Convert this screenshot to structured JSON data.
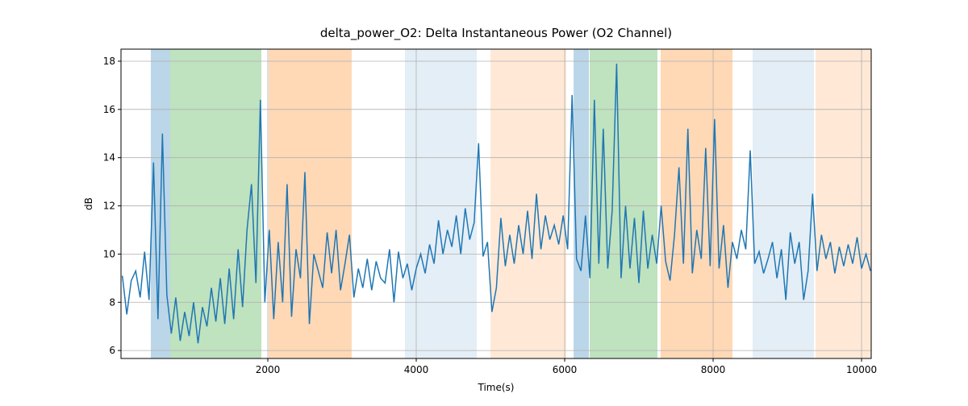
{
  "chart_data": {
    "type": "line",
    "title": "delta_power_O2: Delta Instantaneous Power (O2 Channel)",
    "xlabel": "Time(s)",
    "ylabel": "dB",
    "xlim": [
      22,
      10130
    ],
    "ylim": [
      5.67,
      18.5
    ],
    "xticks": [
      2000,
      4000,
      6000,
      8000,
      10000
    ],
    "yticks": [
      6,
      8,
      10,
      12,
      14,
      16,
      18
    ],
    "grid": true,
    "spans": [
      {
        "x0": 424,
        "x1": 685,
        "color": "#1f77b4",
        "alpha": 0.3
      },
      {
        "x0": 685,
        "x1": 1913,
        "color": "#2ca02c",
        "alpha": 0.3
      },
      {
        "x0": 2011,
        "x1": 3130,
        "color": "#ff7f0e",
        "alpha": 0.3
      },
      {
        "x0": 3848,
        "x1": 4815,
        "color": "#1f77b4",
        "alpha": 0.12
      },
      {
        "x0": 5000,
        "x1": 6022,
        "color": "#ff7f0e",
        "alpha": 0.17
      },
      {
        "x0": 6120,
        "x1": 6326,
        "color": "#1f77b4",
        "alpha": 0.3
      },
      {
        "x0": 6337,
        "x1": 7250,
        "color": "#2ca02c",
        "alpha": 0.3
      },
      {
        "x0": 7293,
        "x1": 8261,
        "color": "#ff7f0e",
        "alpha": 0.3
      },
      {
        "x0": 8533,
        "x1": 9359,
        "color": "#1f77b4",
        "alpha": 0.12
      },
      {
        "x0": 9380,
        "x1": 10130,
        "color": "#ff7f0e",
        "alpha": 0.17
      }
    ],
    "x": [
      40,
      100,
      160,
      220,
      280,
      340,
      400,
      460,
      520,
      580,
      640,
      700,
      760,
      820,
      880,
      940,
      1000,
      1060,
      1120,
      1180,
      1240,
      1300,
      1360,
      1420,
      1480,
      1540,
      1600,
      1660,
      1720,
      1780,
      1840,
      1900,
      1960,
      2020,
      2080,
      2140,
      2200,
      2260,
      2320,
      2380,
      2440,
      2500,
      2560,
      2620,
      2680,
      2740,
      2800,
      2860,
      2920,
      2980,
      3040,
      3100,
      3160,
      3220,
      3280,
      3340,
      3400,
      3460,
      3520,
      3580,
      3640,
      3700,
      3760,
      3820,
      3880,
      3940,
      4000,
      4060,
      4120,
      4180,
      4240,
      4300,
      4360,
      4420,
      4480,
      4540,
      4600,
      4660,
      4720,
      4780,
      4840,
      4900,
      4960,
      5020,
      5080,
      5140,
      5200,
      5260,
      5320,
      5380,
      5440,
      5500,
      5560,
      5620,
      5680,
      5740,
      5800,
      5860,
      5920,
      5980,
      6040,
      6100,
      6160,
      6220,
      6280,
      6340,
      6400,
      6460,
      6520,
      6580,
      6640,
      6700,
      6760,
      6820,
      6880,
      6940,
      7000,
      7060,
      7120,
      7180,
      7240,
      7300,
      7360,
      7420,
      7480,
      7540,
      7600,
      7660,
      7720,
      7780,
      7840,
      7900,
      7960,
      8020,
      8080,
      8140,
      8200,
      8260,
      8320,
      8380,
      8440,
      8500,
      8560,
      8620,
      8680,
      8740,
      8800,
      8860,
      8920,
      8980,
      9040,
      9100,
      9160,
      9220,
      9280,
      9340,
      9400,
      9460,
      9520,
      9580,
      9640,
      9700,
      9760,
      9820,
      9880,
      9940,
      10000,
      10060,
      10120
    ],
    "series": [
      {
        "color": "#1f77b4",
        "values": [
          9.1,
          7.5,
          8.9,
          9.3,
          8.2,
          10.1,
          8.1,
          13.8,
          7.3,
          15.0,
          8.3,
          6.7,
          8.2,
          6.4,
          7.6,
          6.6,
          8.0,
          6.3,
          7.8,
          7.0,
          8.6,
          7.2,
          9.0,
          7.1,
          9.4,
          7.3,
          10.2,
          7.8,
          11.0,
          12.9,
          8.8,
          16.4,
          8.0,
          11.0,
          7.3,
          10.5,
          8.0,
          12.9,
          7.4,
          10.2,
          9.0,
          13.4,
          7.1,
          10.0,
          9.3,
          8.6,
          10.9,
          9.2,
          11.0,
          8.5,
          9.6,
          10.8,
          8.2,
          9.4,
          8.6,
          9.8,
          8.5,
          9.7,
          9.0,
          8.8,
          10.2,
          8.0,
          10.1,
          9.0,
          9.6,
          8.5,
          9.4,
          10.0,
          9.2,
          10.4,
          9.6,
          11.4,
          10.0,
          11.0,
          10.3,
          11.6,
          10.0,
          11.9,
          10.6,
          11.3,
          14.6,
          9.9,
          10.5,
          7.6,
          8.6,
          11.5,
          9.5,
          10.8,
          9.6,
          11.2,
          10.0,
          11.8,
          9.8,
          12.5,
          10.2,
          11.6,
          10.6,
          11.2,
          10.4,
          11.6,
          10.2,
          16.6,
          9.8,
          9.3,
          11.6,
          9.0,
          16.4,
          9.6,
          15.2,
          9.4,
          11.8,
          17.9,
          9.0,
          12.0,
          9.4,
          11.5,
          8.8,
          11.8,
          9.4,
          10.8,
          9.6,
          12.0,
          9.7,
          8.9,
          10.8,
          13.6,
          9.6,
          15.2,
          9.2,
          11.0,
          9.8,
          14.4,
          9.5,
          15.6,
          9.4,
          11.2,
          8.6,
          10.5,
          9.8,
          11.0,
          10.2,
          14.3,
          9.6,
          10.1,
          9.2,
          9.8,
          10.5,
          9.0,
          10.2,
          8.1,
          10.9,
          9.6,
          10.5,
          8.1,
          9.3,
          12.5,
          9.3,
          10.8,
          9.8,
          10.5,
          9.2,
          10.3,
          9.5,
          10.4,
          9.6,
          10.7,
          9.4,
          10.0,
          9.3
        ]
      }
    ]
  }
}
